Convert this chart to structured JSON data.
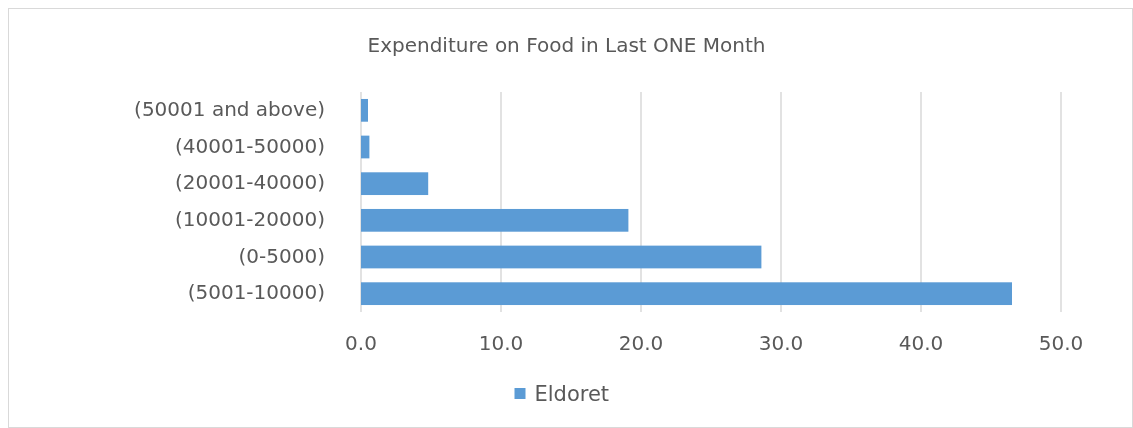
{
  "chart_data": {
    "type": "bar",
    "orientation": "horizontal",
    "title": "Expenditure on Food in Last ONE Month",
    "categories": [
      "(50001 and above)",
      "(40001-50000)",
      "(20001-40000)",
      "(10001-20000)",
      "(0-5000)",
      "(5001-10000)"
    ],
    "series": [
      {
        "name": "Eldoret",
        "color": "#5b9bd5",
        "values": [
          0.5,
          0.6,
          4.8,
          19.1,
          28.6,
          46.5
        ]
      }
    ],
    "xlim": [
      0,
      50
    ],
    "xticks": [
      {
        "value": 0,
        "label": "0.0"
      },
      {
        "value": 10,
        "label": "10.0"
      },
      {
        "value": 20,
        "label": "20.0"
      },
      {
        "value": 30,
        "label": "30.0"
      },
      {
        "value": 40,
        "label": "40.0"
      },
      {
        "value": 50,
        "label": "50.0"
      }
    ],
    "grid": "x",
    "legend": "bottom"
  }
}
